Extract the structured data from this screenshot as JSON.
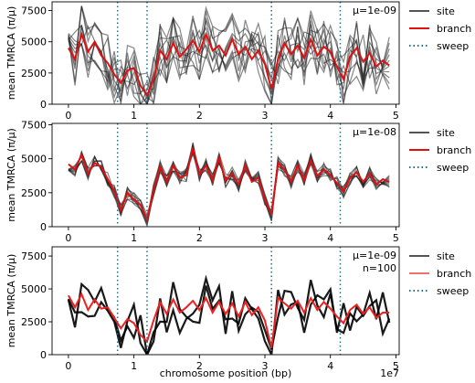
{
  "figure": {
    "xlabel": "chromosome position (bp)",
    "offset_label": "1e7"
  },
  "chart_data": [
    {
      "type": "line",
      "annotation": "μ=1e-09",
      "ylabel": "mean TMRCA (π/μ)",
      "xlim": [
        -0.25,
        5.05
      ],
      "ylim": [
        0,
        8200
      ],
      "xticks": [
        0,
        1,
        2,
        3,
        4,
        5
      ],
      "yticks": [
        0,
        2500,
        5000,
        7500
      ],
      "ytick_labels": [
        "0",
        "2500",
        "5000",
        "7500"
      ],
      "legend_position": "top-right",
      "legend": [
        {
          "label": "site",
          "color": "#555555",
          "style": "solid"
        },
        {
          "label": "branch",
          "color": "#dd1111",
          "style": "solid"
        },
        {
          "label": "sweep",
          "color": "#1f6f8b",
          "style": "dotted"
        }
      ],
      "sweeps": [
        0.75,
        1.2,
        3.1,
        4.15
      ],
      "site_style": {
        "color": "#222222",
        "opacity": 0.55,
        "count": 10,
        "spread": 2300
      },
      "branch_color": "#dd1111",
      "x": [
        0.0,
        0.1,
        0.2,
        0.3,
        0.4,
        0.5,
        0.6,
        0.7,
        0.8,
        0.9,
        1.0,
        1.1,
        1.2,
        1.3,
        1.4,
        1.5,
        1.6,
        1.7,
        1.8,
        1.9,
        2.0,
        2.1,
        2.2,
        2.3,
        2.4,
        2.5,
        2.6,
        2.7,
        2.8,
        2.9,
        3.0,
        3.1,
        3.2,
        3.3,
        3.4,
        3.5,
        3.6,
        3.7,
        3.8,
        3.9,
        4.0,
        4.1,
        4.2,
        4.3,
        4.4,
        4.5,
        4.6,
        4.7,
        4.8,
        4.9
      ],
      "branch": [
        4500,
        3600,
        5600,
        4200,
        5000,
        3900,
        3300,
        2400,
        1700,
        2700,
        2900,
        1500,
        700,
        2000,
        4300,
        3600,
        4900,
        3800,
        4400,
        5100,
        4200,
        5600,
        4300,
        4700,
        3900,
        5200,
        4000,
        4600,
        3600,
        4300,
        3200,
        1200,
        3600,
        4900,
        4000,
        4700,
        3700,
        5200,
        3900,
        4600,
        4200,
        3000,
        2000,
        3800,
        4500,
        3400,
        4100,
        3000,
        3500,
        3100
      ]
    },
    {
      "type": "line",
      "annotation": "μ=1e-08",
      "ylabel": "mean TMRCA (π/μ)",
      "xlim": [
        -0.25,
        5.05
      ],
      "ylim": [
        0,
        7600
      ],
      "xticks": [
        0,
        1,
        2,
        3,
        4,
        5
      ],
      "yticks": [
        0,
        2500,
        5000,
        7500
      ],
      "ytick_labels": [
        "0",
        "2500",
        "5000",
        "7500"
      ],
      "legend_position": "top-right",
      "legend": [
        {
          "label": "site",
          "color": "#555555",
          "style": "solid"
        },
        {
          "label": "branch",
          "color": "#dd1111",
          "style": "solid"
        },
        {
          "label": "sweep",
          "color": "#1f6f8b",
          "style": "dotted"
        }
      ],
      "sweeps": [
        0.75,
        1.2,
        3.1,
        4.15
      ],
      "site_style": {
        "color": "#222222",
        "opacity": 0.55,
        "count": 10,
        "spread": 500
      },
      "branch_color": "#dd1111",
      "x": [
        0.0,
        0.1,
        0.2,
        0.3,
        0.4,
        0.5,
        0.6,
        0.7,
        0.8,
        0.9,
        1.0,
        1.1,
        1.2,
        1.3,
        1.4,
        1.5,
        1.6,
        1.7,
        1.8,
        1.9,
        2.0,
        2.1,
        2.2,
        2.3,
        2.4,
        2.5,
        2.6,
        2.7,
        2.8,
        2.9,
        3.0,
        3.1,
        3.2,
        3.3,
        3.4,
        3.5,
        3.6,
        3.7,
        3.8,
        3.9,
        4.0,
        4.1,
        4.2,
        4.3,
        4.4,
        4.5,
        4.6,
        4.7,
        4.8,
        4.9
      ],
      "branch": [
        4600,
        4200,
        5300,
        3900,
        4700,
        4400,
        3500,
        2600,
        1200,
        2500,
        2000,
        1600,
        500,
        2700,
        4400,
        3300,
        4500,
        3600,
        3800,
        5800,
        3800,
        4500,
        3400,
        5100,
        3400,
        3900,
        3100,
        4500,
        3300,
        3600,
        2000,
        900,
        4700,
        4200,
        3300,
        4500,
        3400,
        4900,
        3700,
        4200,
        3800,
        3200,
        2600,
        3600,
        4000,
        3300,
        3900,
        3100,
        3500,
        3300
      ]
    },
    {
      "type": "line",
      "annotation": "μ=1e-09\nn=100",
      "ylabel": "mean TMRCA (π/μ)",
      "xlim": [
        -0.25,
        5.05
      ],
      "ylim": [
        0,
        8200
      ],
      "xticks": [
        0,
        1,
        2,
        3,
        4,
        5
      ],
      "xtick_labels": [
        "0",
        "1",
        "2",
        "3",
        "4",
        "5"
      ],
      "yticks": [
        0,
        2500,
        5000,
        7500
      ],
      "ytick_labels": [
        "0",
        "2500",
        "5000",
        "7500"
      ],
      "legend_position": "top-right",
      "legend": [
        {
          "label": "site",
          "color": "#555555",
          "style": "solid"
        },
        {
          "label": "branch",
          "color": "#ee7070",
          "style": "solid"
        },
        {
          "label": "sweep",
          "color": "#1f6f8b",
          "style": "dotted"
        }
      ],
      "sweeps": [
        0.75,
        1.2,
        3.1,
        4.15
      ],
      "site_style": {
        "color": "#000000",
        "opacity": 0.9,
        "count": 2,
        "spread": 1600
      },
      "branch_color": "#ee2020",
      "x": [
        0.0,
        0.1,
        0.2,
        0.3,
        0.4,
        0.5,
        0.6,
        0.7,
        0.8,
        0.9,
        1.0,
        1.1,
        1.2,
        1.3,
        1.4,
        1.5,
        1.6,
        1.7,
        1.8,
        1.9,
        2.0,
        2.1,
        2.2,
        2.3,
        2.4,
        2.5,
        2.6,
        2.7,
        2.8,
        2.9,
        3.0,
        3.1,
        3.2,
        3.3,
        3.4,
        3.5,
        3.6,
        3.7,
        3.8,
        3.9,
        4.0,
        4.1,
        4.2,
        4.3,
        4.4,
        4.5,
        4.6,
        4.7,
        4.8,
        4.9
      ],
      "branch": [
        4500,
        3600,
        4600,
        3400,
        4200,
        3500,
        3600,
        2800,
        2000,
        2700,
        2400,
        1500,
        1000,
        2600,
        4000,
        3100,
        4200,
        3200,
        3600,
        4100,
        3400,
        4300,
        3200,
        4000,
        3100,
        3900,
        2900,
        4000,
        3000,
        3600,
        2600,
        500,
        4300,
        3900,
        3500,
        4100,
        3200,
        4300,
        3400,
        4000,
        3500,
        2900,
        2400,
        3400,
        3800,
        3100,
        3600,
        2800,
        3200,
        3200
      ]
    }
  ]
}
